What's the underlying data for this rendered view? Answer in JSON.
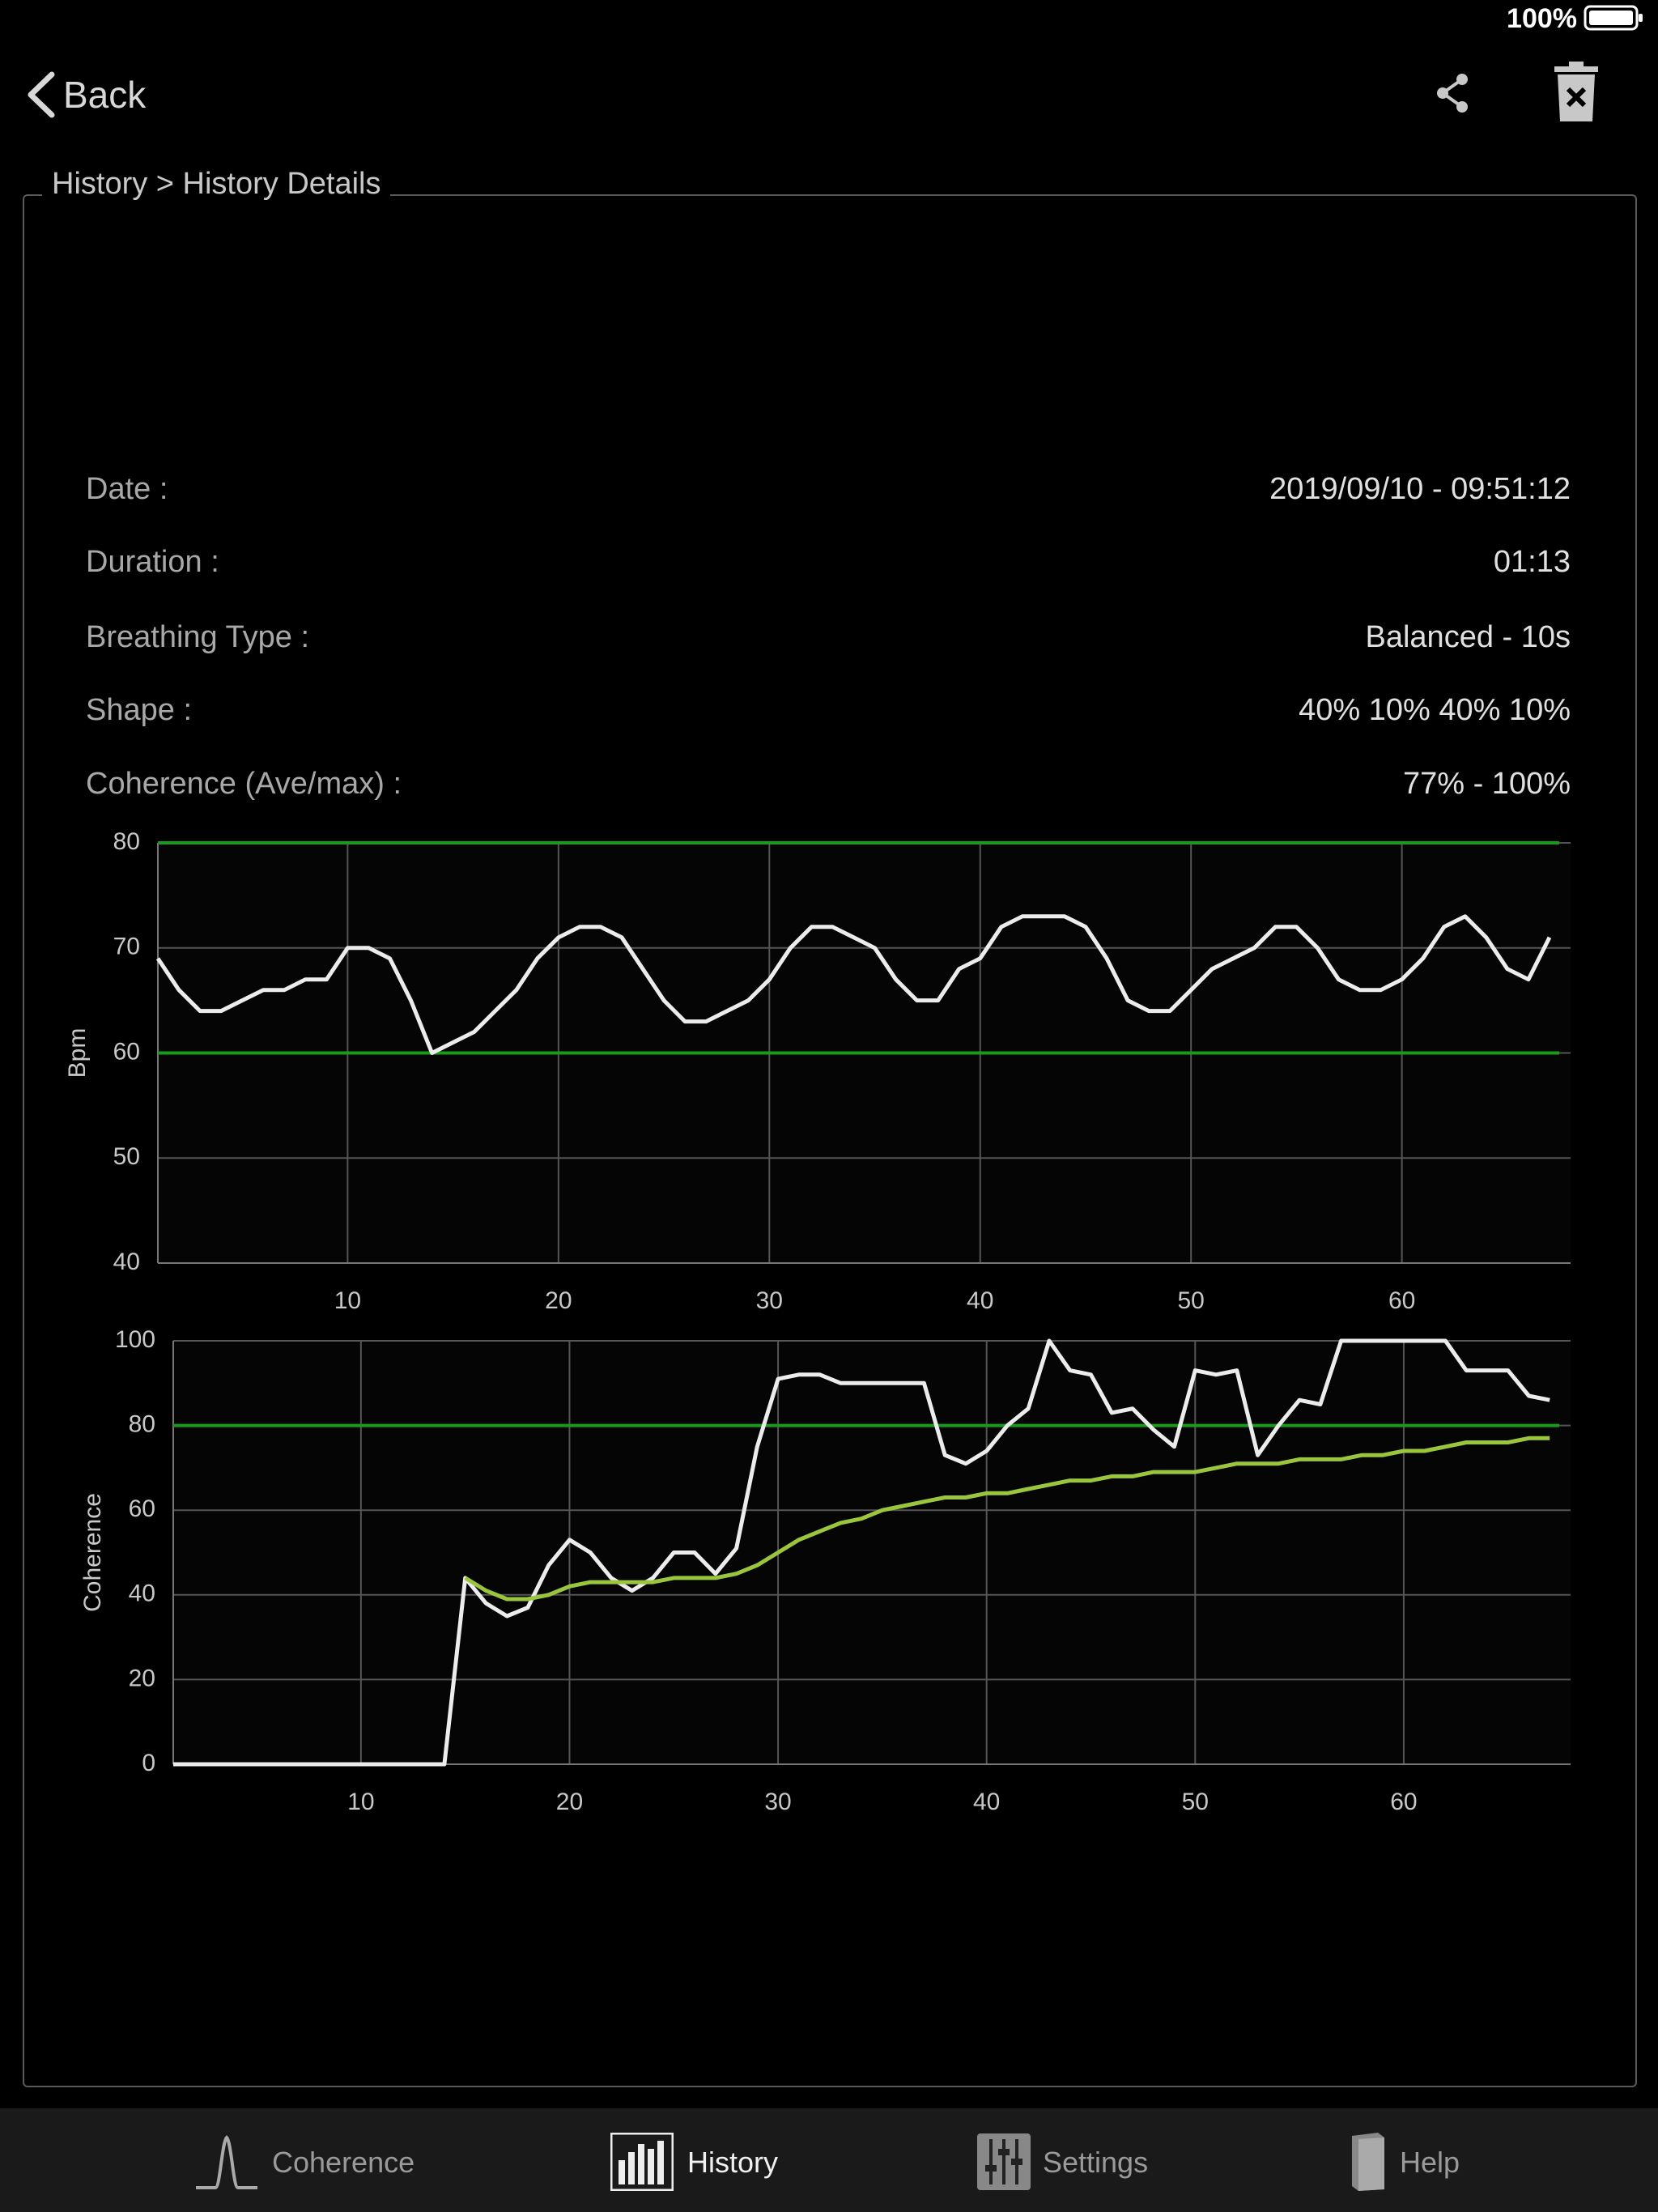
{
  "status_bar": {
    "battery": "100%"
  },
  "nav": {
    "back": "Back"
  },
  "breadcrumb": "History > History Details",
  "details": [
    {
      "label": "Date :",
      "value": "2019/09/10 - 09:51:12"
    },
    {
      "label": "Duration :",
      "value": "01:13"
    },
    {
      "label": "Breathing Type :",
      "value": "Balanced - 10s"
    },
    {
      "label": "Shape :",
      "value": "40% 10% 40% 10%"
    },
    {
      "label": "Coherence (Ave/max) :",
      "value": "77% - 100%"
    }
  ],
  "charts": [
    {
      "type": "line",
      "ylabel": "Bpm",
      "x": [
        1,
        2,
        3,
        4,
        5,
        6,
        7,
        8,
        9,
        10,
        11,
        12,
        13,
        14,
        15,
        16,
        17,
        18,
        19,
        20,
        21,
        22,
        23,
        24,
        25,
        26,
        27,
        28,
        29,
        30,
        31,
        32,
        33,
        34,
        35,
        36,
        37,
        38,
        39,
        40,
        41,
        42,
        43,
        44,
        45,
        46,
        47,
        48,
        49,
        50,
        51,
        52,
        53,
        54,
        55,
        56,
        57,
        58,
        59,
        60,
        61,
        62,
        63,
        64,
        65,
        66,
        67
      ],
      "xlim": [
        1,
        68
      ],
      "ylim": [
        40,
        80
      ],
      "xticks": [
        10,
        20,
        30,
        40,
        50,
        60
      ],
      "yticks": [
        40,
        50,
        60,
        70,
        80
      ],
      "grid": true,
      "reference_lines": [
        60,
        80
      ],
      "reference_color": "#1a9a1a",
      "series": [
        {
          "color": "#ececec",
          "values": [
            69,
            66,
            64,
            64,
            65,
            66,
            66,
            67,
            67,
            70,
            70,
            69,
            65,
            60,
            61,
            62,
            64,
            66,
            69,
            71,
            72,
            72,
            71,
            68,
            65,
            63,
            63,
            64,
            65,
            67,
            70,
            72,
            72,
            71,
            70,
            67,
            65,
            65,
            68,
            69,
            72,
            73,
            73,
            73,
            72,
            69,
            65,
            64,
            64,
            66,
            68,
            69,
            70,
            72,
            72,
            70,
            67,
            66,
            66,
            67,
            69,
            72,
            73,
            71,
            68,
            67,
            71
          ]
        }
      ]
    },
    {
      "type": "line",
      "ylabel": "Coherence",
      "x": [
        1,
        2,
        3,
        4,
        5,
        6,
        7,
        8,
        9,
        10,
        11,
        12,
        13,
        14,
        15,
        16,
        17,
        18,
        19,
        20,
        21,
        22,
        23,
        24,
        25,
        26,
        27,
        28,
        29,
        30,
        31,
        32,
        33,
        34,
        35,
        36,
        37,
        38,
        39,
        40,
        41,
        42,
        43,
        44,
        45,
        46,
        47,
        48,
        49,
        50,
        51,
        52,
        53,
        54,
        55,
        56,
        57,
        58,
        59,
        60,
        61,
        62,
        63,
        64,
        65,
        66,
        67
      ],
      "xlim": [
        1,
        68
      ],
      "ylim": [
        0,
        100
      ],
      "xticks": [
        10,
        20,
        30,
        40,
        50,
        60
      ],
      "yticks": [
        0,
        20,
        40,
        60,
        80,
        100
      ],
      "grid": true,
      "reference_lines": [
        80
      ],
      "reference_color": "#1a9a1a",
      "series": [
        {
          "color": "#ececec",
          "values": [
            0,
            0,
            0,
            0,
            0,
            0,
            0,
            0,
            0,
            0,
            0,
            0,
            0,
            0,
            44,
            38,
            35,
            37,
            47,
            53,
            50,
            44,
            41,
            44,
            50,
            50,
            45,
            51,
            75,
            91,
            92,
            92,
            90,
            90,
            90,
            90,
            90,
            73,
            71,
            74,
            80,
            84,
            100,
            93,
            92,
            83,
            84,
            79,
            75,
            93,
            92,
            93,
            73,
            80,
            86,
            85,
            100,
            100,
            100,
            100,
            100,
            100,
            93,
            93,
            93,
            87,
            86
          ]
        },
        {
          "color": "#9bc53d",
          "values": [
            null,
            null,
            null,
            null,
            null,
            null,
            null,
            null,
            null,
            null,
            null,
            null,
            null,
            null,
            44,
            41,
            39,
            39,
            40,
            42,
            43,
            43,
            43,
            43,
            44,
            44,
            44,
            45,
            47,
            50,
            53,
            55,
            57,
            58,
            60,
            61,
            62,
            63,
            63,
            64,
            64,
            65,
            66,
            67,
            67,
            68,
            68,
            69,
            69,
            69,
            70,
            71,
            71,
            71,
            72,
            72,
            72,
            73,
            73,
            74,
            74,
            75,
            76,
            76,
            76,
            77,
            77
          ]
        }
      ]
    }
  ],
  "tabs": [
    "Coherence",
    "History",
    "Settings",
    "Help"
  ]
}
